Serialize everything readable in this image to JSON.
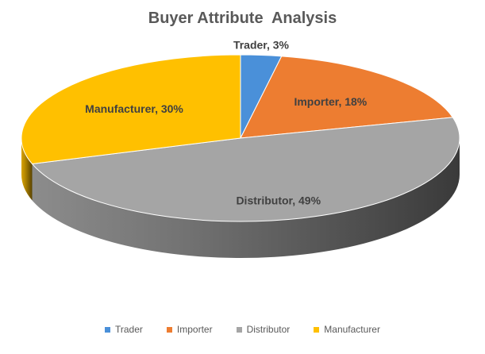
{
  "chart_data": {
    "type": "pie",
    "title": "Buyer Attribute  Analysis",
    "categories": [
      "Trader",
      "Importer",
      "Distributor",
      "Manufacturer"
    ],
    "values": [
      3,
      18,
      49,
      30
    ],
    "data_labels": [
      "Trader, 3%",
      "Importer, 18%",
      "Distributor, 49%",
      "Manufacturer, 30%"
    ],
    "colors": [
      "#4a90d9",
      "#ed7d31",
      "#a5a5a5",
      "#ffc000"
    ],
    "legend_position": "bottom",
    "style": "3d"
  },
  "legend": {
    "items": [
      {
        "label": "Trader",
        "color": "#4a90d9"
      },
      {
        "label": "Importer",
        "color": "#ed7d31"
      },
      {
        "label": "Distributor",
        "color": "#a5a5a5"
      },
      {
        "label": "Manufacturer",
        "color": "#ffc000"
      }
    ]
  }
}
